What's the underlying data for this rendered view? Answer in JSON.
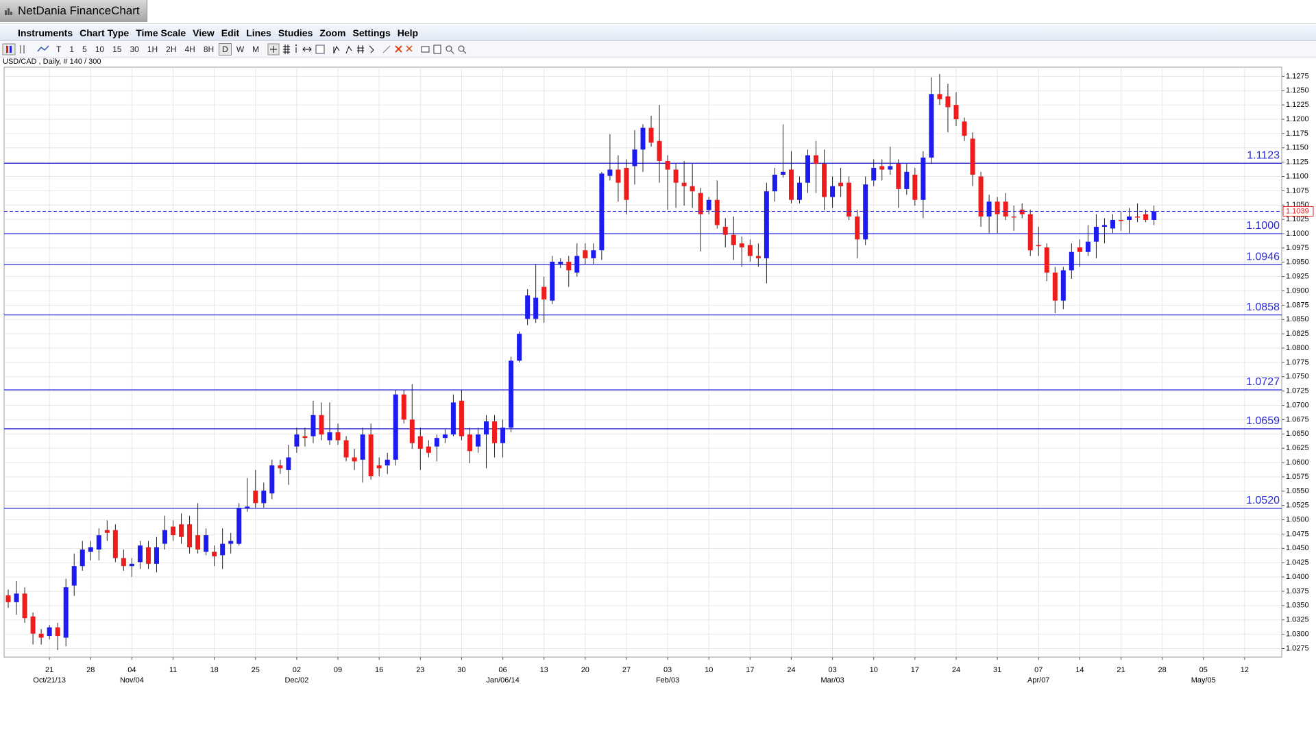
{
  "window": {
    "title": "NetDania FinanceChart",
    "menu": [
      "Instruments",
      "Chart Type",
      "Time Scale",
      "View",
      "Edit",
      "Lines",
      "Studies",
      "Zoom",
      "Settings",
      "Help"
    ],
    "toolbar": [
      "T",
      "1",
      "5",
      "10",
      "15",
      "30",
      "1H",
      "2H",
      "4H",
      "8H",
      "D",
      "W",
      "M"
    ]
  },
  "chart_data": {
    "type": "candlestick",
    "title": "USD/CAD , Daily, # 140 / 300",
    "up_color": "#1c1cf0",
    "down_color": "#f01c1c",
    "grid": true,
    "ylim": [
      1.026,
      1.1291
    ],
    "yticks": [
      1.0275,
      {
        "value": 1.03,
        "label": "1.0300"
      },
      1.0325,
      {
        "value": 1.035,
        "label": "1.0350"
      },
      1.0375,
      {
        "value": 1.04,
        "label": "1.0400"
      },
      1.0425,
      {
        "value": 1.045,
        "label": "1.0450"
      },
      1.0475,
      {
        "value": 1.05,
        "label": "1.0500"
      },
      1.0525,
      {
        "value": 1.055,
        "label": "1.0550"
      },
      1.0575,
      {
        "value": 1.06,
        "label": "1.0600"
      },
      1.0625,
      {
        "value": 1.065,
        "label": "1.0650"
      },
      1.0675,
      {
        "value": 1.07,
        "label": "1.0700"
      },
      1.0725,
      {
        "value": 1.075,
        "label": "1.0750"
      },
      1.0775,
      {
        "value": 1.08,
        "label": "1.0800"
      },
      1.0825,
      {
        "value": 1.085,
        "label": "1.0850"
      },
      1.0875,
      {
        "value": 1.09,
        "label": "1.0900"
      },
      1.0925,
      {
        "value": 1.095,
        "label": "1.0950"
      },
      1.0975,
      {
        "value": 1.1,
        "label": "1.1000"
      },
      1.1025,
      {
        "value": 1.105,
        "label": "1.1050"
      },
      1.1075,
      {
        "value": 1.11,
        "label": "1.1100"
      },
      1.1125,
      {
        "value": 1.115,
        "label": "1.1150"
      },
      1.1175,
      {
        "value": 1.12,
        "label": "1.1200"
      },
      1.1225,
      {
        "value": 1.125,
        "label": "1.1250"
      },
      1.1275
    ],
    "levels": [
      {
        "value": 1.1123,
        "label": "1.1123"
      },
      {
        "value": 1.1,
        "label": "1.1000"
      },
      {
        "value": 1.0946,
        "label": "1.0946"
      },
      {
        "value": 1.0858,
        "label": "1.0858"
      },
      {
        "value": 1.0727,
        "label": "1.0727"
      },
      {
        "value": 1.0659,
        "label": "1.0659"
      },
      {
        "value": 1.052,
        "label": "1.0520"
      }
    ],
    "last": {
      "value": 1.1039,
      "label": "1.1039"
    },
    "categories": [
      null,
      null,
      null,
      null,
      null,
      "21",
      null,
      null,
      null,
      null,
      "28",
      null,
      null,
      null,
      null,
      "04",
      null,
      null,
      null,
      null,
      "11",
      null,
      null,
      null,
      null,
      "18",
      null,
      null,
      null,
      null,
      "25",
      null,
      null,
      null,
      null,
      "02",
      null,
      null,
      null,
      null,
      "09",
      null,
      null,
      null,
      null,
      "16",
      null,
      null,
      null,
      null,
      "23",
      null,
      null,
      null,
      null,
      "30",
      null,
      null,
      null,
      null,
      "06",
      null,
      null,
      null,
      null,
      "13",
      null,
      null,
      null,
      null,
      "20",
      null,
      null,
      null,
      null,
      "27",
      null,
      null,
      null,
      null,
      "03",
      null,
      null,
      null,
      null,
      "10",
      null,
      null,
      null,
      null,
      "17",
      null,
      null,
      null,
      null,
      "24",
      null,
      null,
      null,
      null,
      "03",
      null,
      null,
      null,
      null,
      "10",
      null,
      null,
      null,
      null,
      "17",
      null,
      null,
      null,
      null,
      "24",
      null,
      null,
      null,
      null,
      "31",
      null,
      null,
      null,
      null,
      "07",
      null,
      null,
      null,
      null,
      "14",
      null,
      null,
      null,
      null,
      "21",
      null,
      null,
      null,
      null,
      "28",
      null,
      null,
      null,
      null,
      "05",
      null,
      null,
      null,
      null,
      "12",
      null,
      null,
      null,
      null
    ],
    "category_groups": [
      null,
      null,
      null,
      null,
      null,
      "Oct/21/13",
      null,
      null,
      null,
      null,
      null,
      null,
      null,
      null,
      null,
      "Nov/04",
      null,
      null,
      null,
      null,
      null,
      null,
      null,
      null,
      null,
      null,
      null,
      null,
      null,
      null,
      null,
      null,
      null,
      null,
      null,
      "Dec/02",
      null,
      null,
      null,
      null,
      null,
      null,
      null,
      null,
      null,
      null,
      null,
      null,
      null,
      null,
      null,
      null,
      null,
      null,
      null,
      null,
      null,
      null,
      null,
      null,
      "Jan/06/14",
      null,
      null,
      null,
      null,
      null,
      null,
      null,
      null,
      null,
      null,
      null,
      null,
      null,
      null,
      null,
      null,
      null,
      null,
      null,
      "Feb/03",
      null,
      null,
      null,
      null,
      null,
      null,
      null,
      null,
      null,
      null,
      null,
      null,
      null,
      null,
      null,
      null,
      null,
      null,
      null,
      "Mar/03",
      null,
      null,
      null,
      null,
      null,
      null,
      null,
      null,
      null,
      null,
      null,
      null,
      null,
      null,
      null,
      null,
      null,
      null,
      null,
      null,
      null,
      null,
      null,
      null,
      "Apr/07",
      null,
      null,
      null,
      null,
      null,
      null,
      null,
      null,
      null,
      null,
      null,
      null,
      null,
      null,
      null,
      null,
      null,
      null,
      null,
      "May/05",
      null,
      null,
      null,
      null,
      null,
      null,
      null,
      null,
      null
    ],
    "open": [
      1.0368,
      1.0356,
      1.0371,
      1.0331,
      1.0301,
      1.0297,
      1.0312,
      1.0294,
      1.0385,
      1.0419,
      1.0444,
      1.0448,
      1.0482,
      1.0482,
      1.0433,
      1.0419,
      1.0426,
      1.0452,
      1.0423,
      1.0458,
      1.0488,
      1.0492,
      1.0492,
      1.0473,
      1.0444,
      1.0444,
      1.0438,
      1.0458,
      1.0458,
      1.052,
      1.0551,
      1.0529,
      1.0546,
      1.0595,
      1.0587,
      1.0628,
      1.0646,
      1.0646,
      1.0683,
      1.0639,
      1.0653,
      1.0639,
      1.0609,
      1.0605,
      1.0649,
      1.0595,
      1.0595,
      1.0605,
      1.0719,
      1.0675,
      1.0646,
      1.0628,
      1.0628,
      1.0643,
      1.0649,
      1.0708,
      1.0649,
      1.0628,
      1.0649,
      1.0672,
      1.0634,
      1.0661,
      1.0778,
      1.0851,
      1.0851,
      1.0907,
      1.0883,
      1.0947,
      1.0951,
      1.0932,
      1.0971,
      1.0957,
      1.0971,
      1.1101,
      1.1112,
      1.1115,
      1.1118,
      1.1147,
      1.1185,
      1.1162,
      1.1127,
      1.1112,
      1.1089,
      1.1083,
      1.1071,
      1.1041,
      1.1059,
      1.1012,
      1.0998,
      1.0983,
      1.098,
      1.0961,
      1.0957,
      1.1074,
      1.1103,
      1.1112,
      1.1059,
      1.1089,
      1.1137,
      1.1122,
      1.1064,
      1.1089,
      1.1089,
      1.103,
      1.099,
      1.1093,
      1.1118,
      1.1112,
      1.1122,
      1.1078,
      1.1103,
      1.1059,
      1.1133,
      1.1244,
      1.124,
      1.1225,
      1.1196,
      1.1166,
      1.11,
      1.103,
      1.1056,
      1.1056,
      1.103,
      1.1042,
      1.1034,
      1.098,
      1.0976,
      1.0932,
      1.0883,
      1.0936,
      1.0976,
      1.0968,
      1.0986,
      1.1012,
      1.1009,
      1.1024,
      1.1024,
      1.103,
      1.1034,
      1.1024,
      null,
      null,
      null,
      null,
      null,
      null,
      null,
      null,
      null,
      null,
      null,
      null,
      null,
      null,
      null
    ],
    "high": [
      1.0378,
      1.0393,
      1.0382,
      1.0338,
      1.0309,
      1.0316,
      1.032,
      1.0397,
      1.0441,
      1.0463,
      1.0463,
      1.0485,
      1.0499,
      1.0492,
      1.0448,
      1.0433,
      1.0463,
      1.0463,
      1.047,
      1.0507,
      1.0499,
      1.0511,
      1.0507,
      1.0529,
      1.0485,
      1.0455,
      1.0485,
      1.0477,
      1.0529,
      1.0573,
      1.0587,
      1.0565,
      1.0605,
      1.0605,
      1.0631,
      1.0661,
      1.0661,
      1.0708,
      1.0705,
      1.0705,
      1.0668,
      1.0646,
      1.0624,
      1.0661,
      1.0668,
      1.0609,
      1.0617,
      1.0727,
      1.0727,
      1.0737,
      1.0661,
      1.0639,
      1.0649,
      1.0658,
      1.0719,
      1.0727,
      1.0661,
      1.0661,
      1.0683,
      1.0683,
      1.0675,
      1.0785,
      1.0829,
      1.0903,
      1.0947,
      1.0925,
      1.0961,
      1.0957,
      1.0961,
      1.0983,
      1.0983,
      1.0983,
      1.1108,
      1.1174,
      1.1137,
      1.113,
      1.1181,
      1.1191,
      1.1206,
      1.1225,
      1.1137,
      1.1122,
      1.1127,
      1.1122,
      1.108,
      1.1064,
      1.1093,
      1.1027,
      1.103,
      1.0995,
      1.099,
      1.0983,
      1.1089,
      1.1115,
      1.1191,
      1.1144,
      1.11,
      1.1147,
      1.1162,
      1.1147,
      1.11,
      1.1115,
      1.11,
      1.1042,
      1.11,
      1.113,
      1.113,
      1.1152,
      1.113,
      1.1122,
      1.1115,
      1.1144,
      1.1273,
      1.1279,
      1.1262,
      1.1247,
      1.1203,
      1.1177,
      1.1108,
      1.1068,
      1.1064,
      1.1071,
      1.1049,
      1.1053,
      1.1042,
      1.1012,
      1.0983,
      1.0942,
      1.0942,
      1.0983,
      1.099,
      1.1015,
      1.1034,
      1.1027,
      1.1034,
      1.1038,
      1.1045,
      1.1053,
      1.1042,
      1.1049,
      null,
      null,
      null,
      null,
      null,
      null,
      null,
      null,
      null,
      null,
      null,
      null,
      null,
      null,
      null
    ],
    "low": [
      1.0346,
      1.0334,
      1.032,
      1.0282,
      1.0282,
      1.0291,
      1.0272,
      1.0279,
      1.0367,
      1.0411,
      1.0429,
      1.0429,
      1.0463,
      1.0426,
      1.0411,
      1.04,
      1.0414,
      1.0414,
      1.0408,
      1.0448,
      1.0463,
      1.0458,
      1.0441,
      1.0441,
      1.0438,
      1.0419,
      1.0414,
      1.0441,
      1.0455,
      1.0514,
      1.0521,
      1.0521,
      1.0536,
      1.058,
      1.0561,
      1.0617,
      1.0628,
      1.0634,
      1.0639,
      1.0631,
      1.0631,
      1.0602,
      1.0587,
      1.0565,
      1.057,
      1.0576,
      1.058,
      1.0595,
      1.0668,
      1.0624,
      1.0587,
      1.0609,
      1.0602,
      1.0634,
      1.0646,
      1.0639,
      1.0599,
      1.0617,
      1.059,
      1.0609,
      1.0609,
      1.0653,
      1.0775,
      1.084,
      1.0844,
      1.0844,
      1.0877,
      1.094,
      1.0907,
      1.0925,
      1.0947,
      1.0947,
      1.0954,
      1.1093,
      1.1056,
      1.1034,
      1.1086,
      1.1108,
      1.1152,
      1.1089,
      1.1042,
      1.1045,
      1.1049,
      1.1045,
      1.0969,
      1.1034,
      1.1009,
      1.0976,
      1.0954,
      1.0942,
      1.0951,
      1.0942,
      1.0913,
      1.1056,
      1.1098,
      1.1053,
      1.1053,
      1.1071,
      1.1071,
      1.1041,
      1.1045,
      1.1064,
      1.1024,
      1.0957,
      1.098,
      1.1083,
      1.1093,
      1.1103,
      1.1045,
      1.1068,
      1.1049,
      1.1027,
      1.1122,
      1.1225,
      1.1177,
      1.1188,
      1.1162,
      1.1083,
      1.1012,
      1.1001,
      1.1001,
      1.1024,
      1.1005,
      1.1027,
      1.0961,
      1.0961,
      1.0917,
      1.0861,
      1.0868,
      1.0921,
      1.0942,
      1.0961,
      1.0957,
      1.0983,
      1.1001,
      1.1005,
      1.1001,
      1.102,
      1.102,
      1.1015,
      null,
      null,
      null,
      null,
      null,
      null,
      null,
      null,
      null,
      null,
      null,
      null,
      null,
      null,
      null
    ],
    "close": [
      1.0356,
      1.0371,
      1.0328,
      1.0301,
      1.0294,
      1.0312,
      1.0297,
      1.0382,
      1.0419,
      1.0448,
      1.0452,
      1.0473,
      1.0477,
      1.0433,
      1.0419,
      1.0423,
      1.0455,
      1.0423,
      1.0452,
      1.0482,
      1.0473,
      1.047,
      1.0452,
      1.0448,
      1.0473,
      1.0436,
      1.0458,
      1.0463,
      1.0521,
      1.0523,
      1.0529,
      1.0551,
      1.0595,
      1.059,
      1.0609,
      1.0649,
      1.0643,
      1.0683,
      1.0649,
      1.0653,
      1.0639,
      1.0609,
      1.0602,
      1.0649,
      1.0576,
      1.059,
      1.0605,
      1.0719,
      1.0675,
      1.0634,
      1.0624,
      1.0617,
      1.0643,
      1.0649,
      1.0705,
      1.0646,
      1.062,
      1.0649,
      1.0672,
      1.0634,
      1.0661,
      1.0778,
      1.0825,
      1.0892,
      1.0888,
      1.0885,
      1.0951,
      1.0951,
      1.0936,
      1.0961,
      1.0957,
      1.0971,
      1.1105,
      1.1112,
      1.1089,
      1.1059,
      1.1147,
      1.1185,
      1.1159,
      1.1127,
      1.1112,
      1.1089,
      1.1083,
      1.1074,
      1.1034,
      1.1059,
      1.1015,
      1.0998,
      1.098,
      1.0976,
      1.0961,
      1.0957,
      1.1074,
      1.1103,
      1.1108,
      1.1059,
      1.1089,
      1.1137,
      1.1122,
      1.1064,
      1.1083,
      1.1083,
      1.103,
      1.099,
      1.1086,
      1.1115,
      1.1112,
      1.1118,
      1.1078,
      1.1108,
      1.1059,
      1.1133,
      1.1244,
      1.1235,
      1.1221,
      1.12,
      1.1171,
      1.1103,
      1.103,
      1.1056,
      1.1034,
      1.103,
      1.103,
      1.1034,
      1.0971,
      1.0979,
      1.0932,
      1.0883,
      1.0936,
      1.0968,
      1.0968,
      1.0986,
      1.1012,
      1.1015,
      1.1024,
      1.1023,
      1.103,
      1.1029,
      1.1024,
      1.1039,
      null,
      null,
      null,
      null,
      null,
      null,
      null,
      null,
      null,
      null,
      null,
      null,
      null,
      null,
      null
    ]
  }
}
